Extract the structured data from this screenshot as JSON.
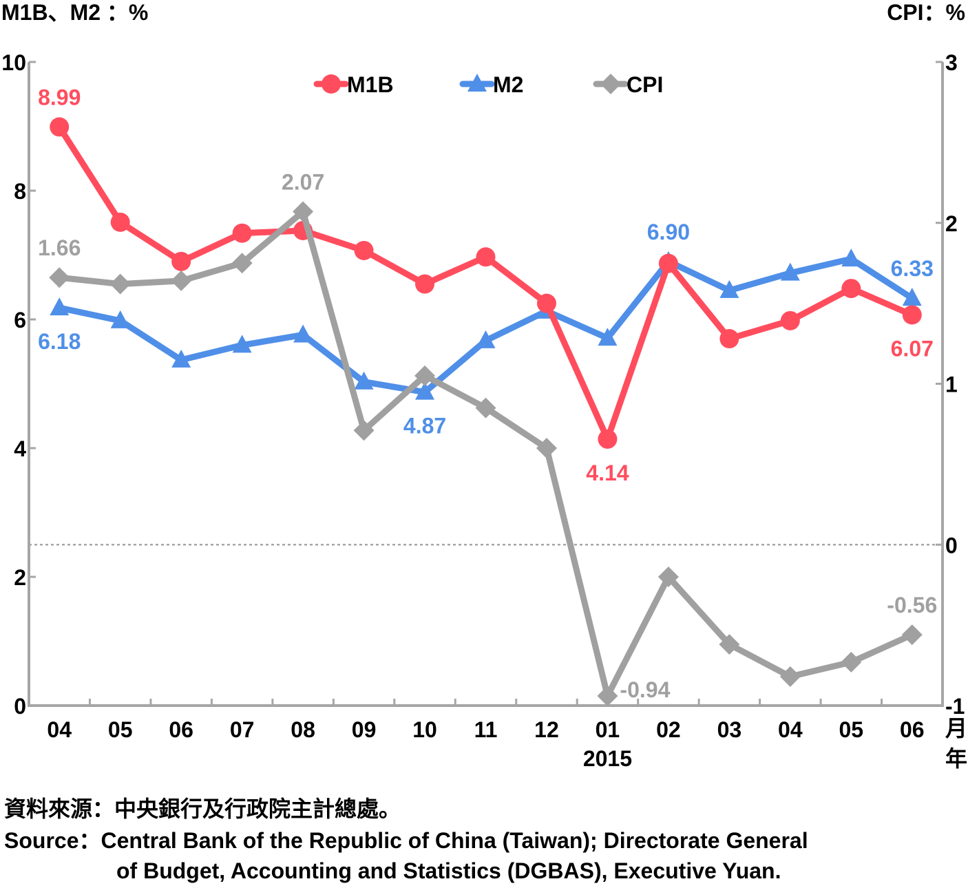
{
  "axis_titles": {
    "left": "M1B、M2 ：%",
    "right": "CPI：%"
  },
  "x_axis_unit": {
    "month": "月",
    "year": "年"
  },
  "footer": {
    "zh": "資料來源：中央銀行及行政院主計總處。",
    "en_line1": "Source：Central Bank of the Republic of China (Taiwan); Directorate General",
    "en_line2": "of Budget, Accounting and Statistics (DGBAS), Executive Yuan."
  },
  "chart_data": {
    "type": "line",
    "title": "",
    "categories": [
      "04",
      "05",
      "06",
      "07",
      "08",
      "09",
      "10",
      "11",
      "12",
      "01",
      "02",
      "03",
      "04",
      "05",
      "06"
    ],
    "year_labels": [
      {
        "category_index": 9,
        "label": "2015"
      }
    ],
    "y_left": {
      "label": "M1B、M2 ：%",
      "lim": [
        0,
        10
      ],
      "ticks": [
        0,
        2,
        4,
        6,
        8,
        10
      ]
    },
    "y_right": {
      "label": "CPI：%",
      "lim": [
        -1,
        3
      ],
      "ticks": [
        -1,
        0,
        1,
        2,
        3
      ]
    },
    "reference_line": {
      "axis": "right",
      "value": 0,
      "style": "dotted"
    },
    "legend": {
      "position": "top-center",
      "entries": [
        "M1B",
        "M2",
        "CPI"
      ]
    },
    "grid": false,
    "series": [
      {
        "name": "M1B",
        "axis": "left",
        "color": "#ff4d5e",
        "marker": "circle",
        "values": [
          8.99,
          7.51,
          6.9,
          7.34,
          7.38,
          7.07,
          6.55,
          6.97,
          6.25,
          4.14,
          6.87,
          5.7,
          5.98,
          6.48,
          6.07
        ],
        "labels": [
          {
            "index": 0,
            "text": "8.99",
            "position": "above"
          },
          {
            "index": 9,
            "text": "4.14",
            "position": "below"
          },
          {
            "index": 14,
            "text": "6.07",
            "position": "below"
          }
        ]
      },
      {
        "name": "M2",
        "axis": "left",
        "color": "#4f8fe8",
        "marker": "triangle",
        "values": [
          6.18,
          5.98,
          5.37,
          5.6,
          5.76,
          5.03,
          4.87,
          5.67,
          6.13,
          5.71,
          6.9,
          6.45,
          6.72,
          6.94,
          6.33
        ],
        "labels": [
          {
            "index": 0,
            "text": "6.18",
            "position": "below"
          },
          {
            "index": 6,
            "text": "4.87",
            "position": "below"
          },
          {
            "index": 10,
            "text": "6.90",
            "position": "above"
          },
          {
            "index": 14,
            "text": "6.33",
            "position": "above"
          }
        ]
      },
      {
        "name": "CPI",
        "axis": "right",
        "color": "#a0a0a0",
        "marker": "diamond",
        "values": [
          1.66,
          1.62,
          1.64,
          1.75,
          2.07,
          0.71,
          1.05,
          0.85,
          0.6,
          -0.94,
          -0.2,
          -0.62,
          -0.82,
          -0.73,
          -0.56
        ],
        "labels": [
          {
            "index": 0,
            "text": "1.66",
            "position": "above"
          },
          {
            "index": 4,
            "text": "2.07",
            "position": "above"
          },
          {
            "index": 9,
            "text": "-0.94",
            "position": "right"
          },
          {
            "index": 14,
            "text": "-0.56",
            "position": "above"
          }
        ]
      }
    ]
  }
}
